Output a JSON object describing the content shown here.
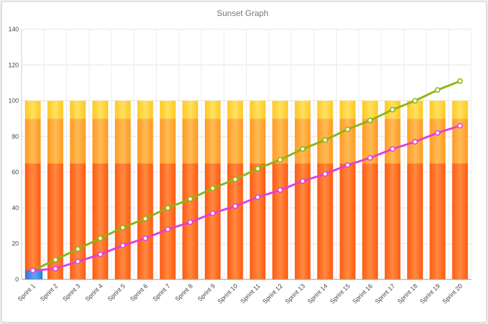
{
  "chart_data": {
    "type": "bar",
    "title": "Sunset Graph",
    "xlabel": "",
    "ylabel": "",
    "ylim": [
      0,
      140
    ],
    "yticks": [
      0,
      20,
      40,
      60,
      80,
      100,
      120,
      140
    ],
    "grid": true,
    "categories": [
      "Sprint 1",
      "Sprint 2",
      "Sprint 3",
      "Sprint 4",
      "Sprint 5",
      "Sprint 6",
      "Sprint 7",
      "Sprint 8",
      "Sprint 9",
      "Sprint 10",
      "Sprint 11",
      "Sprint 12",
      "Sprint 13",
      "Sprint 14",
      "Sprint 15",
      "Sprint 16",
      "Sprint 17",
      "Sprint 18",
      "Sprint 19",
      "Sprint 20"
    ],
    "stacked_bands": [
      {
        "from": 0,
        "to": 65,
        "color": "#ff6a1a"
      },
      {
        "from": 65,
        "to": 90,
        "color": "#ffa52e"
      },
      {
        "from": 90,
        "to": 100,
        "color": "#ffd030"
      }
    ],
    "bar_series": {
      "values": [
        5,
        null,
        null,
        null,
        null,
        null,
        null,
        null,
        null,
        null,
        null,
        null,
        null,
        null,
        null,
        null,
        null,
        null,
        null,
        null
      ],
      "color": "#3d8ce6"
    },
    "series": [
      {
        "values": [
          5,
          11,
          17,
          23,
          29,
          34,
          40,
          45,
          51,
          56,
          62,
          67,
          73,
          78,
          84,
          89,
          95,
          100,
          106,
          111
        ],
        "color": "#8db510"
      },
      {
        "values": [
          5,
          6,
          10,
          14,
          19,
          23,
          28,
          32,
          37,
          41,
          46,
          50,
          55,
          59,
          64,
          68,
          73,
          77,
          82,
          86
        ],
        "color": "#e040d8"
      }
    ]
  }
}
